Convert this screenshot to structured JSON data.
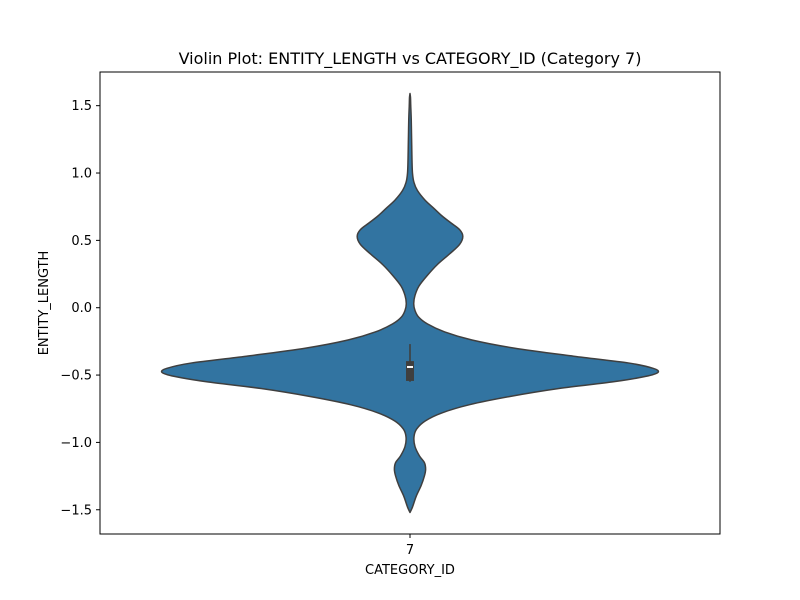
{
  "chart_data": {
    "type": "violin",
    "title": "Violin Plot: ENTITY_LENGTH vs CATEGORY_ID (Category 7)",
    "xlabel": "CATEGORY_ID",
    "ylabel": "ENTITY_LENGTH",
    "categories": [
      "7"
    ],
    "ylim": [
      -1.68,
      1.75
    ],
    "y_ticks": [
      -1.5,
      -1.0,
      -0.5,
      0.0,
      0.5,
      1.0,
      1.5
    ],
    "y_tick_labels": [
      "−1.5",
      "−1.0",
      "−0.5",
      "0.0",
      "0.5",
      "1.0",
      "1.5"
    ],
    "grid": false,
    "legend": "none",
    "fill_color": "#3274a1",
    "edge_color": "#3f3f3f",
    "violins": [
      {
        "category": "7",
        "y_range": [
          -1.52,
          1.59
        ],
        "density_profile": [
          {
            "y": -1.52,
            "w": 0.0
          },
          {
            "y": -1.48,
            "w": 0.01
          },
          {
            "y": -1.4,
            "w": 0.025
          },
          {
            "y": -1.32,
            "w": 0.045
          },
          {
            "y": -1.25,
            "w": 0.058
          },
          {
            "y": -1.2,
            "w": 0.063
          },
          {
            "y": -1.15,
            "w": 0.058
          },
          {
            "y": -1.1,
            "w": 0.038
          },
          {
            "y": -1.03,
            "w": 0.02
          },
          {
            "y": -0.96,
            "w": 0.016
          },
          {
            "y": -0.9,
            "w": 0.027
          },
          {
            "y": -0.84,
            "w": 0.062
          },
          {
            "y": -0.78,
            "w": 0.13
          },
          {
            "y": -0.72,
            "w": 0.24
          },
          {
            "y": -0.66,
            "w": 0.4
          },
          {
            "y": -0.6,
            "w": 0.6
          },
          {
            "y": -0.55,
            "w": 0.82
          },
          {
            "y": -0.51,
            "w": 0.95
          },
          {
            "y": -0.48,
            "w": 1.0
          },
          {
            "y": -0.45,
            "w": 0.98
          },
          {
            "y": -0.41,
            "w": 0.88
          },
          {
            "y": -0.36,
            "w": 0.66
          },
          {
            "y": -0.3,
            "w": 0.42
          },
          {
            "y": -0.24,
            "w": 0.25
          },
          {
            "y": -0.18,
            "w": 0.14
          },
          {
            "y": -0.12,
            "w": 0.07
          },
          {
            "y": -0.07,
            "w": 0.035
          },
          {
            "y": -0.02,
            "w": 0.02
          },
          {
            "y": 0.03,
            "w": 0.015
          },
          {
            "y": 0.09,
            "w": 0.02
          },
          {
            "y": 0.16,
            "w": 0.036
          },
          {
            "y": 0.24,
            "w": 0.07
          },
          {
            "y": 0.32,
            "w": 0.11
          },
          {
            "y": 0.4,
            "w": 0.16
          },
          {
            "y": 0.47,
            "w": 0.2
          },
          {
            "y": 0.53,
            "w": 0.213
          },
          {
            "y": 0.58,
            "w": 0.2
          },
          {
            "y": 0.63,
            "w": 0.165
          },
          {
            "y": 0.68,
            "w": 0.13
          },
          {
            "y": 0.74,
            "w": 0.095
          },
          {
            "y": 0.8,
            "w": 0.06
          },
          {
            "y": 0.87,
            "w": 0.03
          },
          {
            "y": 0.93,
            "w": 0.016
          },
          {
            "y": 1.0,
            "w": 0.01
          },
          {
            "y": 1.1,
            "w": 0.008
          },
          {
            "y": 1.2,
            "w": 0.007
          },
          {
            "y": 1.3,
            "w": 0.006
          },
          {
            "y": 1.4,
            "w": 0.005
          },
          {
            "y": 1.5,
            "w": 0.003
          },
          {
            "y": 1.56,
            "w": 0.002
          },
          {
            "y": 1.59,
            "w": 0.0
          }
        ],
        "whisker": [
          -0.55,
          -0.27
        ],
        "box": [
          -0.54,
          -0.4
        ],
        "median": -0.44
      }
    ]
  }
}
